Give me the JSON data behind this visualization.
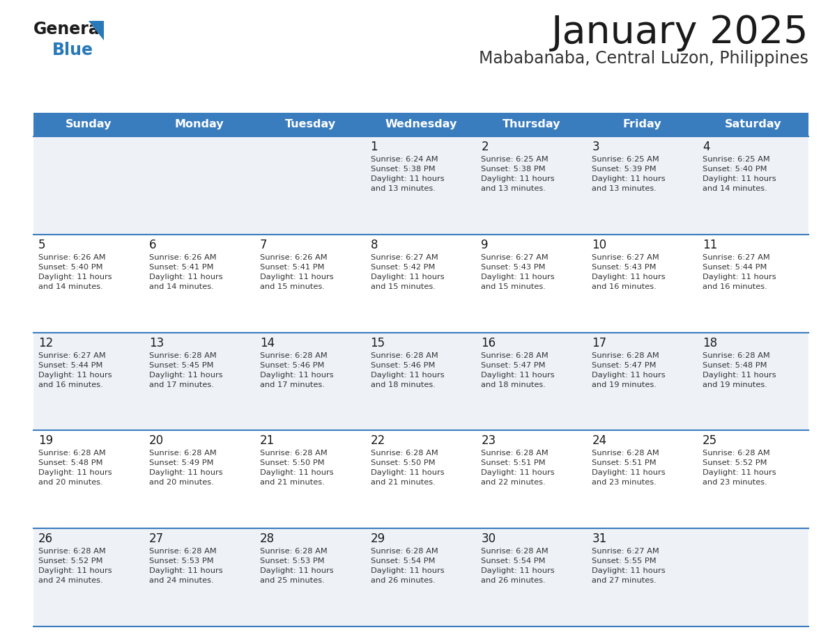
{
  "title": "January 2025",
  "subtitle": "Mababanaba, Central Luzon, Philippines",
  "header_bg_color": "#3a7dbf",
  "header_text_color": "#ffffff",
  "row_bg_even": "#eef2f7",
  "row_bg_odd": "#ffffff",
  "cell_border_color": "#3a7dbf",
  "title_color": "#1a1a1a",
  "subtitle_color": "#333333",
  "day_num_color": "#1a1a1a",
  "cell_text_color": "#333333",
  "day_headers": [
    "Sunday",
    "Monday",
    "Tuesday",
    "Wednesday",
    "Thursday",
    "Friday",
    "Saturday"
  ],
  "days": [
    {
      "day": 1,
      "col": 3,
      "row": 0,
      "sunrise": "6:24 AM",
      "sunset": "5:38 PM",
      "dh": 11,
      "dm": 13
    },
    {
      "day": 2,
      "col": 4,
      "row": 0,
      "sunrise": "6:25 AM",
      "sunset": "5:38 PM",
      "dh": 11,
      "dm": 13
    },
    {
      "day": 3,
      "col": 5,
      "row": 0,
      "sunrise": "6:25 AM",
      "sunset": "5:39 PM",
      "dh": 11,
      "dm": 13
    },
    {
      "day": 4,
      "col": 6,
      "row": 0,
      "sunrise": "6:25 AM",
      "sunset": "5:40 PM",
      "dh": 11,
      "dm": 14
    },
    {
      "day": 5,
      "col": 0,
      "row": 1,
      "sunrise": "6:26 AM",
      "sunset": "5:40 PM",
      "dh": 11,
      "dm": 14
    },
    {
      "day": 6,
      "col": 1,
      "row": 1,
      "sunrise": "6:26 AM",
      "sunset": "5:41 PM",
      "dh": 11,
      "dm": 14
    },
    {
      "day": 7,
      "col": 2,
      "row": 1,
      "sunrise": "6:26 AM",
      "sunset": "5:41 PM",
      "dh": 11,
      "dm": 15
    },
    {
      "day": 8,
      "col": 3,
      "row": 1,
      "sunrise": "6:27 AM",
      "sunset": "5:42 PM",
      "dh": 11,
      "dm": 15
    },
    {
      "day": 9,
      "col": 4,
      "row": 1,
      "sunrise": "6:27 AM",
      "sunset": "5:43 PM",
      "dh": 11,
      "dm": 15
    },
    {
      "day": 10,
      "col": 5,
      "row": 1,
      "sunrise": "6:27 AM",
      "sunset": "5:43 PM",
      "dh": 11,
      "dm": 16
    },
    {
      "day": 11,
      "col": 6,
      "row": 1,
      "sunrise": "6:27 AM",
      "sunset": "5:44 PM",
      "dh": 11,
      "dm": 16
    },
    {
      "day": 12,
      "col": 0,
      "row": 2,
      "sunrise": "6:27 AM",
      "sunset": "5:44 PM",
      "dh": 11,
      "dm": 16
    },
    {
      "day": 13,
      "col": 1,
      "row": 2,
      "sunrise": "6:28 AM",
      "sunset": "5:45 PM",
      "dh": 11,
      "dm": 17
    },
    {
      "day": 14,
      "col": 2,
      "row": 2,
      "sunrise": "6:28 AM",
      "sunset": "5:46 PM",
      "dh": 11,
      "dm": 17
    },
    {
      "day": 15,
      "col": 3,
      "row": 2,
      "sunrise": "6:28 AM",
      "sunset": "5:46 PM",
      "dh": 11,
      "dm": 18
    },
    {
      "day": 16,
      "col": 4,
      "row": 2,
      "sunrise": "6:28 AM",
      "sunset": "5:47 PM",
      "dh": 11,
      "dm": 18
    },
    {
      "day": 17,
      "col": 5,
      "row": 2,
      "sunrise": "6:28 AM",
      "sunset": "5:47 PM",
      "dh": 11,
      "dm": 19
    },
    {
      "day": 18,
      "col": 6,
      "row": 2,
      "sunrise": "6:28 AM",
      "sunset": "5:48 PM",
      "dh": 11,
      "dm": 19
    },
    {
      "day": 19,
      "col": 0,
      "row": 3,
      "sunrise": "6:28 AM",
      "sunset": "5:48 PM",
      "dh": 11,
      "dm": 20
    },
    {
      "day": 20,
      "col": 1,
      "row": 3,
      "sunrise": "6:28 AM",
      "sunset": "5:49 PM",
      "dh": 11,
      "dm": 20
    },
    {
      "day": 21,
      "col": 2,
      "row": 3,
      "sunrise": "6:28 AM",
      "sunset": "5:50 PM",
      "dh": 11,
      "dm": 21
    },
    {
      "day": 22,
      "col": 3,
      "row": 3,
      "sunrise": "6:28 AM",
      "sunset": "5:50 PM",
      "dh": 11,
      "dm": 21
    },
    {
      "day": 23,
      "col": 4,
      "row": 3,
      "sunrise": "6:28 AM",
      "sunset": "5:51 PM",
      "dh": 11,
      "dm": 22
    },
    {
      "day": 24,
      "col": 5,
      "row": 3,
      "sunrise": "6:28 AM",
      "sunset": "5:51 PM",
      "dh": 11,
      "dm": 23
    },
    {
      "day": 25,
      "col": 6,
      "row": 3,
      "sunrise": "6:28 AM",
      "sunset": "5:52 PM",
      "dh": 11,
      "dm": 23
    },
    {
      "day": 26,
      "col": 0,
      "row": 4,
      "sunrise": "6:28 AM",
      "sunset": "5:52 PM",
      "dh": 11,
      "dm": 24
    },
    {
      "day": 27,
      "col": 1,
      "row": 4,
      "sunrise": "6:28 AM",
      "sunset": "5:53 PM",
      "dh": 11,
      "dm": 24
    },
    {
      "day": 28,
      "col": 2,
      "row": 4,
      "sunrise": "6:28 AM",
      "sunset": "5:53 PM",
      "dh": 11,
      "dm": 25
    },
    {
      "day": 29,
      "col": 3,
      "row": 4,
      "sunrise": "6:28 AM",
      "sunset": "5:54 PM",
      "dh": 11,
      "dm": 26
    },
    {
      "day": 30,
      "col": 4,
      "row": 4,
      "sunrise": "6:28 AM",
      "sunset": "5:54 PM",
      "dh": 11,
      "dm": 26
    },
    {
      "day": 31,
      "col": 5,
      "row": 4,
      "sunrise": "6:27 AM",
      "sunset": "5:55 PM",
      "dh": 11,
      "dm": 27
    }
  ]
}
